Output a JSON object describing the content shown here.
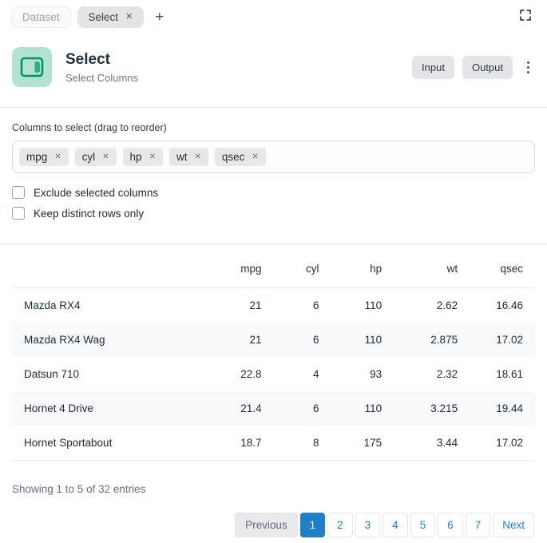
{
  "tabbar": {
    "dataset_label": "Dataset",
    "select_label": "Select",
    "add_label": "+",
    "close_glyph": "✕"
  },
  "header": {
    "title": "Select",
    "subtitle": "Select Columns",
    "input_label": "Input",
    "output_label": "Output"
  },
  "columns_section": {
    "label": "Columns to select (drag to reorder)",
    "chips": [
      "mpg",
      "cyl",
      "hp",
      "wt",
      "qsec"
    ],
    "chip_close_glyph": "✕",
    "checkboxes": [
      {
        "label": "Exclude selected columns",
        "checked": false
      },
      {
        "label": "Keep distinct rows only",
        "checked": false
      }
    ]
  },
  "table": {
    "headers": [
      "",
      "mpg",
      "cyl",
      "hp",
      "wt",
      "qsec"
    ],
    "rows": [
      {
        "name": "Mazda RX4",
        "values": [
          "21",
          "6",
          "110",
          "2.62",
          "16.46"
        ]
      },
      {
        "name": "Mazda RX4 Wag",
        "values": [
          "21",
          "6",
          "110",
          "2.875",
          "17.02"
        ]
      },
      {
        "name": "Datsun 710",
        "values": [
          "22.8",
          "4",
          "93",
          "2.32",
          "18.61"
        ]
      },
      {
        "name": "Hornet 4 Drive",
        "values": [
          "21.4",
          "6",
          "110",
          "3.215",
          "19.44"
        ]
      },
      {
        "name": "Hornet Sportabout",
        "values": [
          "18.7",
          "8",
          "175",
          "3.44",
          "17.02"
        ]
      }
    ],
    "summary": "Showing 1 to 5 of 32 entries"
  },
  "pagination": {
    "previous_label": "Previous",
    "pages": [
      "1",
      "2",
      "3",
      "4",
      "5",
      "6",
      "7"
    ],
    "active_page": "1",
    "next_label": "Next"
  },
  "colors": {
    "node_icon_bg": "#b2e3d2",
    "node_icon_stroke": "#0a9160",
    "node_icon_fill": "#2fae85",
    "pagination_blue": "#1f80c7",
    "row_stripe": "#f8f9fa",
    "chip_bg": "#e7e7ea",
    "divider": "#e6e8eb"
  }
}
